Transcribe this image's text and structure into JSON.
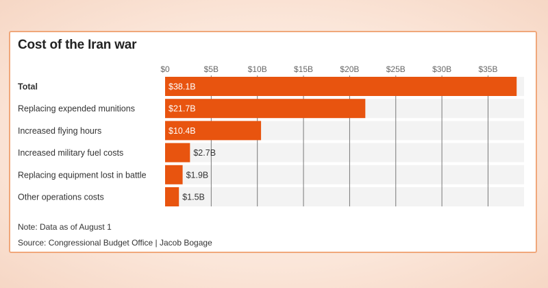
{
  "title": "Cost of the Iran war",
  "note": "Note: Data as of August 1",
  "source": "Source: Congressional Budget Office | Jacob Bogage",
  "colors": {
    "bar": "#e8540f",
    "track": "#f3f3f3",
    "grid": "#777777",
    "text": "#333333",
    "labelInside": "#ffffff"
  },
  "chart_data": {
    "type": "bar",
    "orientation": "horizontal",
    "categories": [
      "Total",
      "Replacing expended munitions",
      "Increased flying hours",
      "Increased military fuel costs",
      "Replacing equipment lost in battle",
      "Other operations costs"
    ],
    "values": [
      38.1,
      21.7,
      10.4,
      2.7,
      1.9,
      1.5
    ],
    "value_labels": [
      "$38.1B",
      "$21.7B",
      "$10.4B",
      "$2.7B",
      "$1.9B",
      "$1.5B"
    ],
    "x_ticks": [
      0,
      5,
      10,
      15,
      20,
      25,
      30,
      35
    ],
    "x_tick_labels": [
      "$0",
      "$5B",
      "$10B",
      "$15B",
      "$20B",
      "$25B",
      "$30B",
      "$35B"
    ],
    "xlim": [
      0,
      38.9
    ],
    "bold_categories": [
      "Total"
    ],
    "grid": true,
    "xaxis_position": "top"
  }
}
